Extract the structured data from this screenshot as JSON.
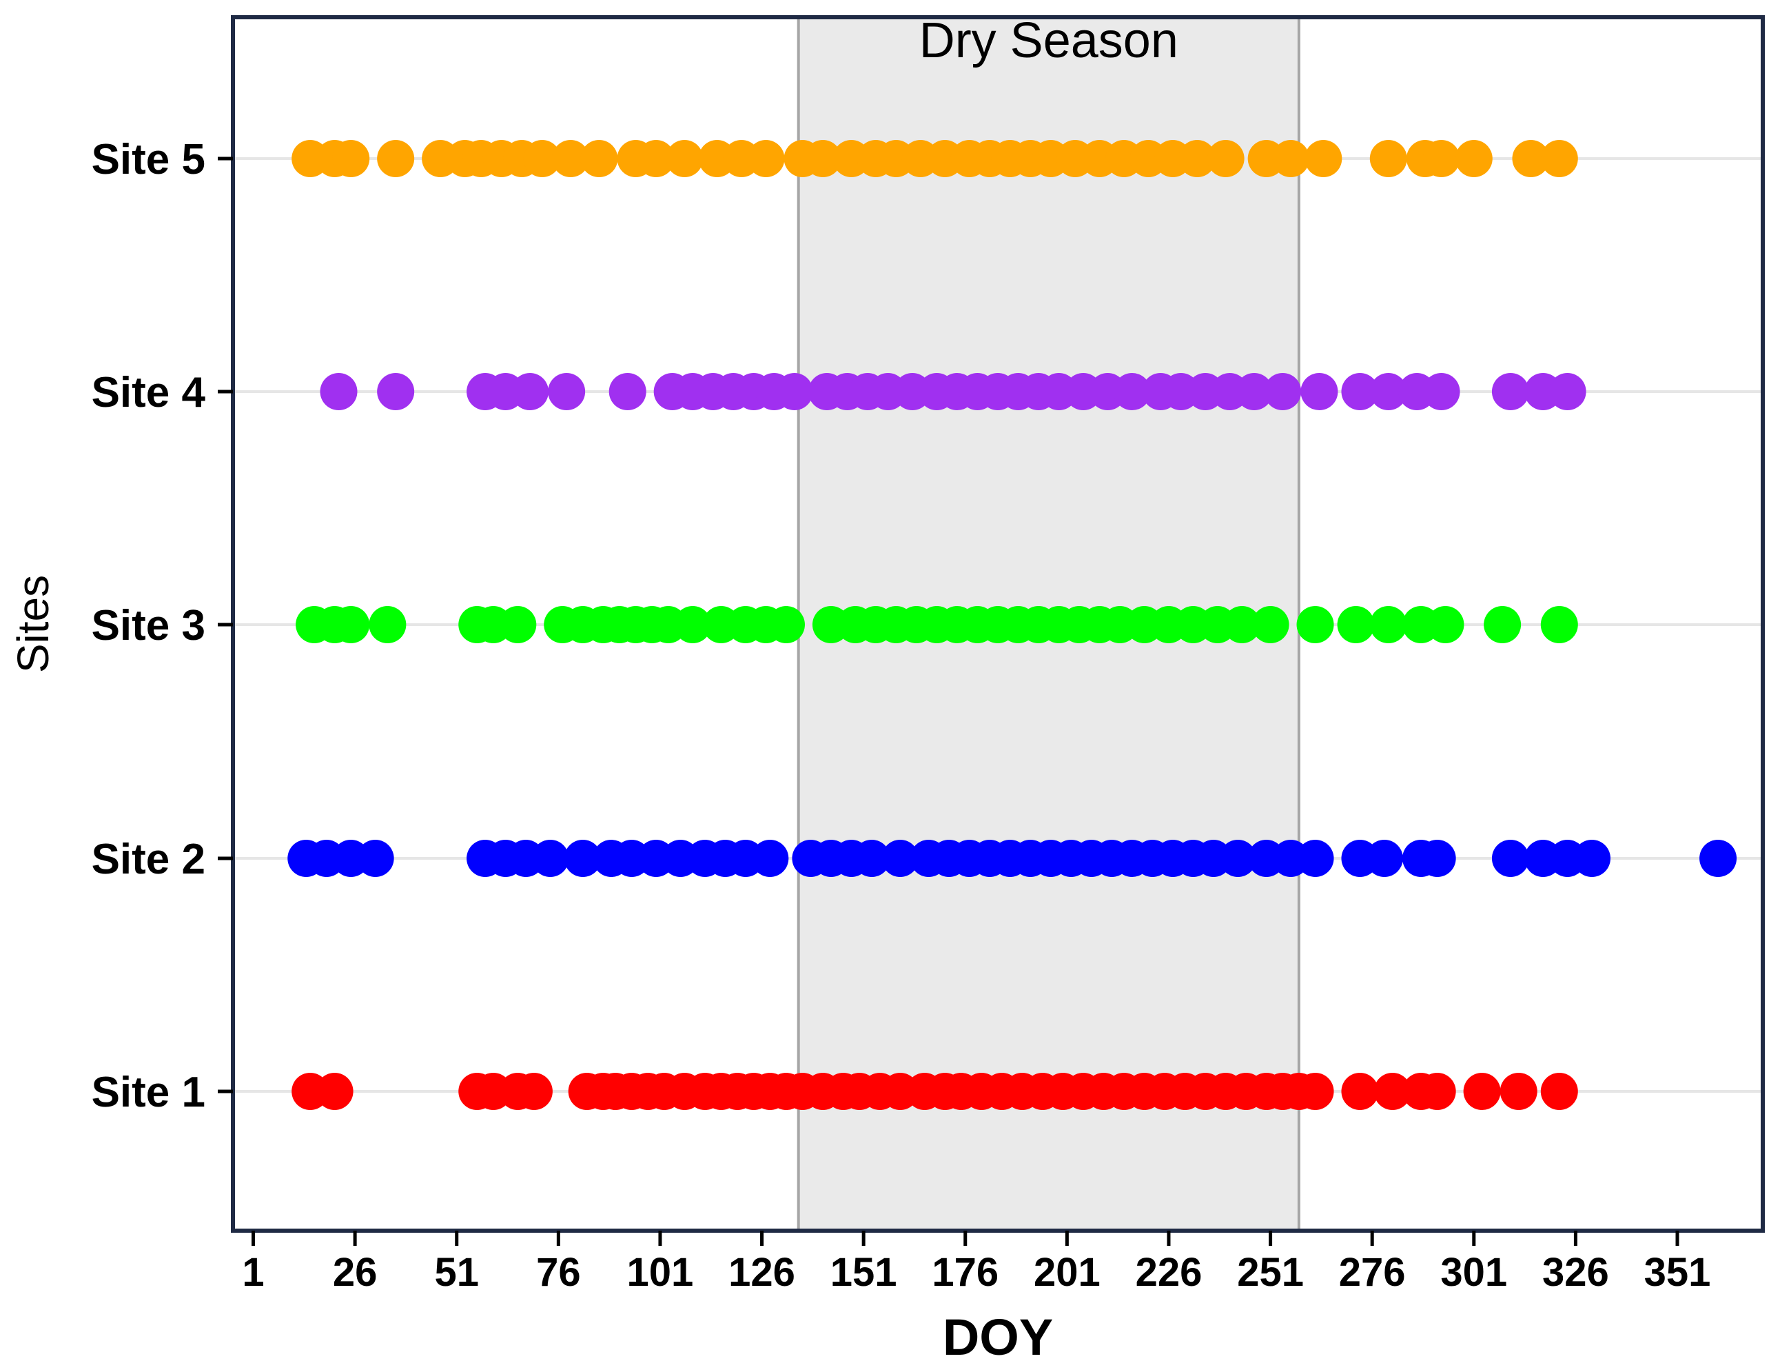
{
  "chart_data": {
    "type": "scatter",
    "xlabel": "DOY",
    "ylabel": "Sites",
    "xlim": [
      -4,
      372
    ],
    "x_ticks": [
      "1",
      "26",
      "51",
      "76",
      "101",
      "126",
      "151",
      "176",
      "201",
      "226",
      "251",
      "276",
      "301",
      "326",
      "351"
    ],
    "categories": [
      "Site 1",
      "Site 2",
      "Site 3",
      "Site 4",
      "Site 5"
    ],
    "grid": "horizontal",
    "legend": "none",
    "shaded_region": {
      "label": "Dry Season",
      "x": [
        135,
        258
      ],
      "color": "#e8e8e8"
    },
    "series": [
      {
        "category": "Site 1",
        "color": "#ff0000",
        "values": [
          15,
          21,
          56,
          60,
          66,
          70,
          83,
          87,
          90,
          94,
          98,
          102,
          107,
          112,
          116,
          120,
          124,
          128,
          132,
          136,
          141,
          146,
          150,
          155,
          160,
          166,
          171,
          175,
          180,
          185,
          190,
          195,
          200,
          205,
          210,
          215,
          220,
          225,
          230,
          235,
          240,
          245,
          250,
          254,
          258,
          262,
          273,
          281,
          288,
          292,
          303,
          312,
          322
        ]
      },
      {
        "category": "Site 2",
        "color": "#0000ff",
        "values": [
          14,
          19,
          25,
          31,
          58,
          63,
          68,
          74,
          82,
          89,
          94,
          100,
          106,
          112,
          117,
          122,
          128,
          138,
          143,
          148,
          153,
          160,
          167,
          172,
          177,
          182,
          187,
          192,
          197,
          202,
          207,
          212,
          217,
          222,
          227,
          232,
          237,
          243,
          250,
          256,
          262,
          273,
          279,
          288,
          292,
          310,
          318,
          324,
          330,
          361
        ]
      },
      {
        "category": "Site 3",
        "color": "#00ff00",
        "values": [
          16,
          21,
          25,
          34,
          56,
          60,
          66,
          77,
          82,
          87,
          91,
          95,
          99,
          103,
          109,
          116,
          122,
          127,
          132,
          143,
          149,
          154,
          159,
          164,
          169,
          174,
          179,
          184,
          189,
          194,
          199,
          204,
          209,
          214,
          220,
          226,
          232,
          238,
          244,
          251,
          262,
          272,
          280,
          288,
          294,
          308,
          322
        ]
      },
      {
        "category": "Site 4",
        "color": "#a030f0",
        "values": [
          22,
          36,
          58,
          63,
          69,
          78,
          93,
          104,
          109,
          114,
          119,
          124,
          129,
          134,
          142,
          147,
          152,
          157,
          163,
          169,
          174,
          179,
          184,
          189,
          194,
          199,
          205,
          211,
          217,
          224,
          229,
          235,
          241,
          247,
          254,
          263,
          273,
          280,
          287,
          293,
          310,
          318,
          324
        ]
      },
      {
        "category": "Site 5",
        "color": "#ffa500",
        "values": [
          15,
          21,
          25,
          36,
          47,
          53,
          57,
          62,
          67,
          72,
          79,
          86,
          95,
          100,
          107,
          115,
          121,
          127,
          136,
          141,
          148,
          154,
          159,
          165,
          171,
          177,
          182,
          187,
          192,
          197,
          203,
          209,
          215,
          221,
          227,
          233,
          240,
          250,
          256,
          264,
          280,
          289,
          293,
          301,
          315,
          322
        ]
      }
    ]
  }
}
